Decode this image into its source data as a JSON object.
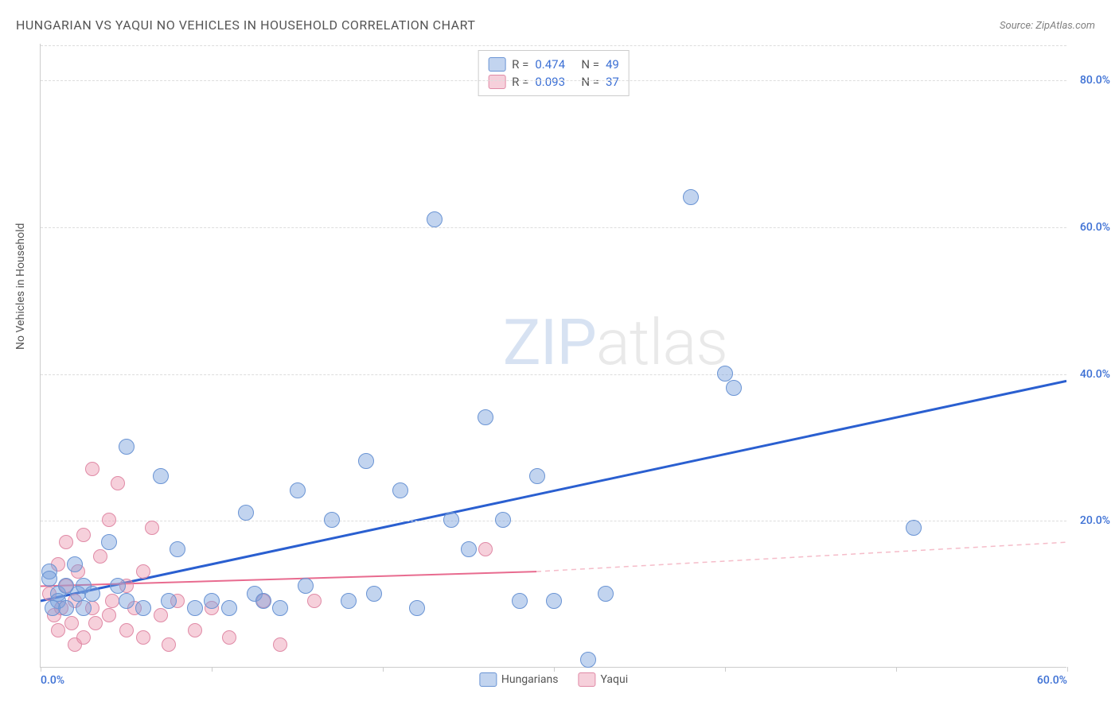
{
  "title": "HUNGARIAN VS YAQUI NO VEHICLES IN HOUSEHOLD CORRELATION CHART",
  "source": "Source: ZipAtlas.com",
  "ylabel": "No Vehicles in Household",
  "watermark_a": "ZIP",
  "watermark_b": "atlas",
  "chart": {
    "type": "scatter",
    "xlim": [
      0,
      60
    ],
    "ylim": [
      0,
      85
    ],
    "x_ticks": [
      0,
      10,
      20,
      30,
      40,
      50,
      60
    ],
    "x_tick_labels": [
      "0.0%",
      "",
      "",
      "",
      "",
      "",
      "60.0%"
    ],
    "x_tick_color": "#3b6fd4",
    "y_gridlines": [
      20,
      40,
      60,
      80
    ],
    "y_tick_labels": [
      "20.0%",
      "40.0%",
      "60.0%",
      "80.0%"
    ],
    "y_tick_color": "#3b6fd4",
    "grid_color": "#dddddd",
    "background_color": "#ffffff",
    "axis_color": "#cccccc"
  },
  "series": {
    "hungarians": {
      "label": "Hungarians",
      "R": "0.474",
      "N": "49",
      "fill": "rgba(120,160,220,0.45)",
      "stroke": "#6a94d4",
      "line_color": "#2a5fd0",
      "line_width": 3,
      "marker_radius": 10,
      "trendline": {
        "x1": 0,
        "y1": 9,
        "x2": 60,
        "y2": 39
      },
      "points": [
        [
          0.5,
          13
        ],
        [
          0.5,
          12
        ],
        [
          1,
          10
        ],
        [
          1,
          9
        ],
        [
          1.5,
          11
        ],
        [
          1.5,
          8
        ],
        [
          2,
          14
        ],
        [
          2.2,
          10
        ],
        [
          2.5,
          11
        ],
        [
          2.5,
          8
        ],
        [
          3,
          10
        ],
        [
          4,
          17
        ],
        [
          4.5,
          11
        ],
        [
          5,
          30
        ],
        [
          5,
          9
        ],
        [
          6,
          8
        ],
        [
          7,
          26
        ],
        [
          7.5,
          9
        ],
        [
          8,
          16
        ],
        [
          9,
          8
        ],
        [
          10,
          9
        ],
        [
          11,
          8
        ],
        [
          12,
          21
        ],
        [
          12.5,
          10
        ],
        [
          13,
          9
        ],
        [
          14,
          8
        ],
        [
          15,
          24
        ],
        [
          15.5,
          11
        ],
        [
          17,
          20
        ],
        [
          18,
          9
        ],
        [
          19,
          28
        ],
        [
          19.5,
          10
        ],
        [
          21,
          24
        ],
        [
          22,
          8
        ],
        [
          23,
          61
        ],
        [
          24,
          20
        ],
        [
          25,
          16
        ],
        [
          26,
          34
        ],
        [
          27,
          20
        ],
        [
          28,
          9
        ],
        [
          29,
          26
        ],
        [
          30,
          9
        ],
        [
          32,
          1
        ],
        [
          33,
          10
        ],
        [
          38,
          64
        ],
        [
          40,
          40
        ],
        [
          40.5,
          38
        ],
        [
          51,
          19
        ],
        [
          0.7,
          8
        ]
      ]
    },
    "yaqui": {
      "label": "Yaqui",
      "R": "0.093",
      "N": "37",
      "fill": "rgba(235,150,175,0.45)",
      "stroke": "#e08aa6",
      "line_color": "#e86b8f",
      "line_width": 2,
      "line_dash_color": "#f5bcc9",
      "marker_radius": 9,
      "trendline_solid": {
        "x1": 0,
        "y1": 11,
        "x2": 29,
        "y2": 13
      },
      "trendline_dash": {
        "x1": 29,
        "y1": 13,
        "x2": 60,
        "y2": 17
      },
      "points": [
        [
          0.5,
          10
        ],
        [
          0.8,
          7
        ],
        [
          1,
          5
        ],
        [
          1,
          14
        ],
        [
          1.2,
          8
        ],
        [
          1.5,
          17
        ],
        [
          1.5,
          11
        ],
        [
          1.8,
          6
        ],
        [
          2,
          9
        ],
        [
          2,
          3
        ],
        [
          2.2,
          13
        ],
        [
          2.5,
          18
        ],
        [
          2.5,
          4
        ],
        [
          3,
          8
        ],
        [
          3,
          27
        ],
        [
          3.2,
          6
        ],
        [
          3.5,
          15
        ],
        [
          4,
          20
        ],
        [
          4,
          7
        ],
        [
          4.2,
          9
        ],
        [
          4.5,
          25
        ],
        [
          5,
          5
        ],
        [
          5,
          11
        ],
        [
          5.5,
          8
        ],
        [
          6,
          13
        ],
        [
          6,
          4
        ],
        [
          6.5,
          19
        ],
        [
          7,
          7
        ],
        [
          7.5,
          3
        ],
        [
          8,
          9
        ],
        [
          9,
          5
        ],
        [
          10,
          8
        ],
        [
          11,
          4
        ],
        [
          13,
          9
        ],
        [
          14,
          3
        ],
        [
          16,
          9
        ],
        [
          26,
          16
        ]
      ]
    }
  },
  "legend_top": {
    "value_color": "#3b6fd4",
    "label_color": "#555555",
    "R_label": "R =",
    "N_label": "N ="
  },
  "legend_bottom": {
    "text_color": "#555555"
  }
}
